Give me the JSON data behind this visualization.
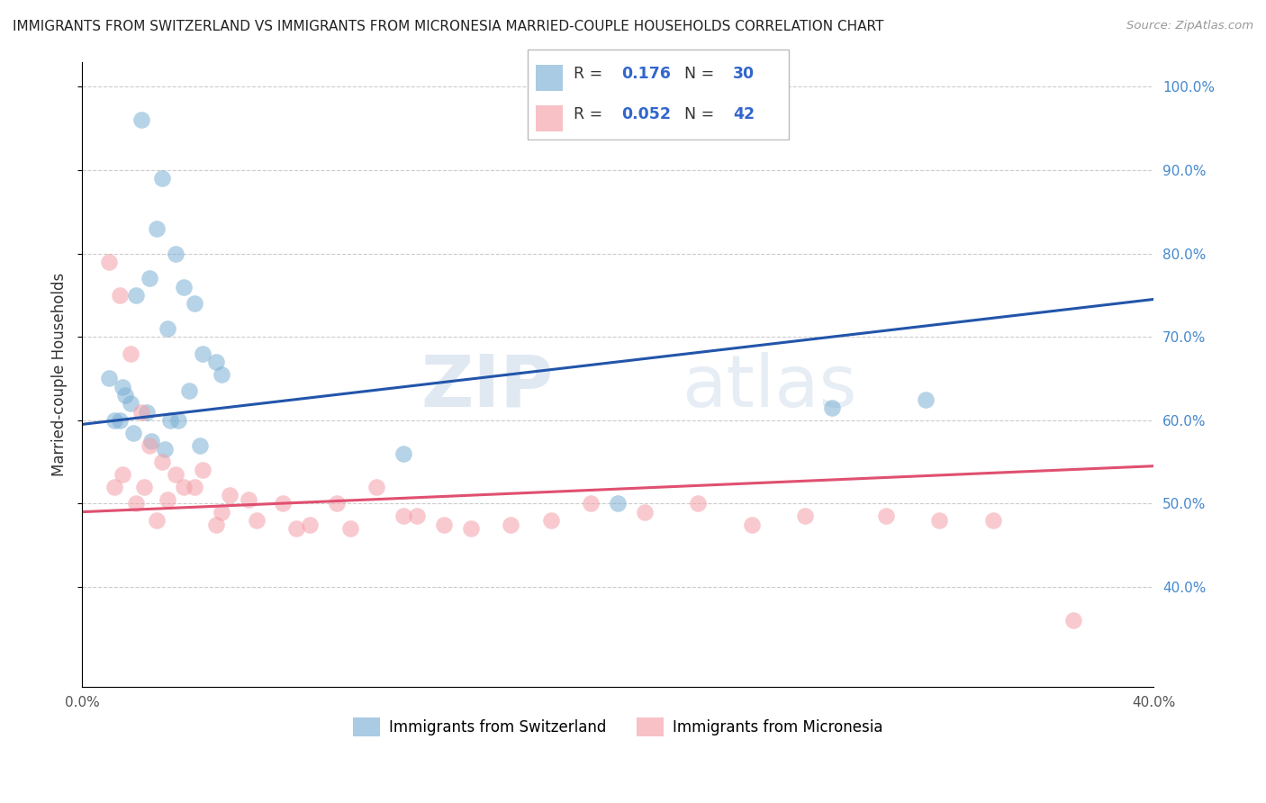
{
  "title": "IMMIGRANTS FROM SWITZERLAND VS IMMIGRANTS FROM MICRONESIA MARRIED-COUPLE HOUSEHOLDS CORRELATION CHART",
  "source": "Source: ZipAtlas.com",
  "ylabel": "Married-couple Households",
  "xlim": [
    0.0,
    0.4
  ],
  "ylim": [
    0.28,
    1.03
  ],
  "legend_label1": "Immigrants from Switzerland",
  "legend_label2": "Immigrants from Micronesia",
  "R1": "0.176",
  "N1": "30",
  "R2": "0.052",
  "N2": "42",
  "color_blue": "#7BAFD4",
  "color_pink": "#F4A0A8",
  "color_line_blue": "#2255AA",
  "color_line_pink": "#E05070",
  "watermark_zip": "ZIP",
  "watermark_atlas": "atlas",
  "blue_line_x0": 0.0,
  "blue_line_y0": 0.595,
  "blue_line_x1": 0.4,
  "blue_line_y1": 0.745,
  "pink_line_x0": 0.0,
  "pink_line_y0": 0.49,
  "pink_line_x1": 0.4,
  "pink_line_y1": 0.545,
  "scatter_blue_x": [
    0.022,
    0.03,
    0.028,
    0.035,
    0.025,
    0.02,
    0.015,
    0.018,
    0.012,
    0.038,
    0.042,
    0.032,
    0.045,
    0.01,
    0.016,
    0.024,
    0.033,
    0.04,
    0.05,
    0.12,
    0.014,
    0.019,
    0.026,
    0.031,
    0.036,
    0.044,
    0.052,
    0.28,
    0.315,
    0.2
  ],
  "scatter_blue_y": [
    0.96,
    0.89,
    0.83,
    0.8,
    0.77,
    0.75,
    0.64,
    0.62,
    0.6,
    0.76,
    0.74,
    0.71,
    0.68,
    0.65,
    0.63,
    0.61,
    0.6,
    0.635,
    0.67,
    0.56,
    0.6,
    0.585,
    0.575,
    0.565,
    0.6,
    0.57,
    0.655,
    0.615,
    0.625,
    0.5
  ],
  "scatter_pink_x": [
    0.01,
    0.014,
    0.018,
    0.022,
    0.025,
    0.03,
    0.035,
    0.012,
    0.02,
    0.028,
    0.038,
    0.045,
    0.05,
    0.055,
    0.065,
    0.075,
    0.085,
    0.095,
    0.11,
    0.125,
    0.135,
    0.145,
    0.16,
    0.175,
    0.19,
    0.21,
    0.23,
    0.25,
    0.27,
    0.3,
    0.32,
    0.34,
    0.37,
    0.015,
    0.023,
    0.032,
    0.042,
    0.052,
    0.062,
    0.08,
    0.1,
    0.12
  ],
  "scatter_pink_y": [
    0.79,
    0.75,
    0.68,
    0.61,
    0.57,
    0.55,
    0.535,
    0.52,
    0.5,
    0.48,
    0.52,
    0.54,
    0.475,
    0.51,
    0.48,
    0.5,
    0.475,
    0.5,
    0.52,
    0.485,
    0.475,
    0.47,
    0.475,
    0.48,
    0.5,
    0.49,
    0.5,
    0.475,
    0.485,
    0.485,
    0.48,
    0.48,
    0.36,
    0.535,
    0.52,
    0.505,
    0.52,
    0.49,
    0.505,
    0.47,
    0.47,
    0.485
  ]
}
